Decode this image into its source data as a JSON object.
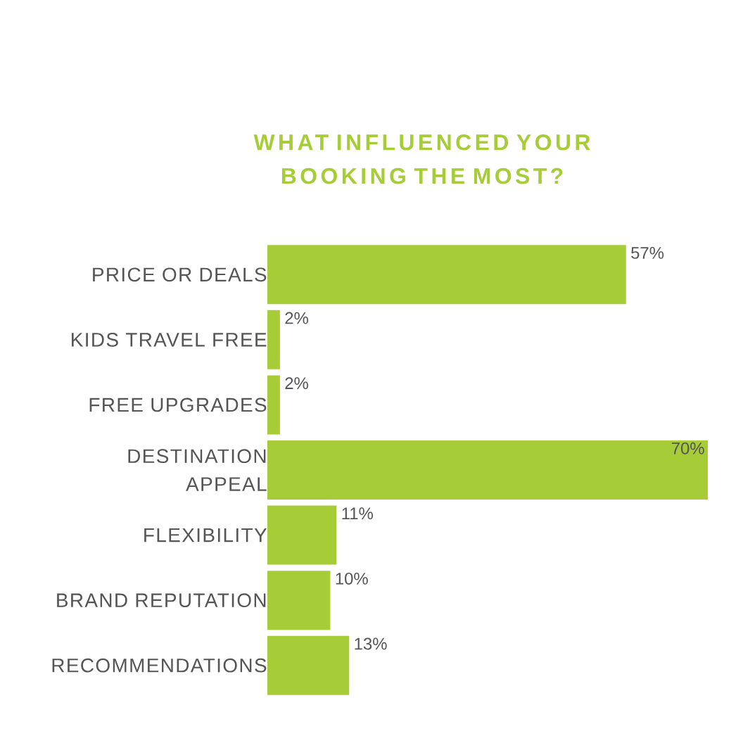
{
  "chart_data": {
    "type": "bar",
    "orientation": "horizontal",
    "title": "WHAT INFLUENCED YOUR BOOKING THE MOST?",
    "categories": [
      "PRICE OR DEALS",
      "KIDS TRAVEL FREE",
      "FREE UPGRADES",
      "DESTINATION APPEAL",
      "FLEXIBILITY",
      "BRAND REPUTATION",
      "RECOMMENDATIONS"
    ],
    "values": [
      57,
      2,
      2,
      70,
      11,
      10,
      13
    ],
    "value_labels": [
      "57%",
      "2%",
      "2%",
      "70%",
      "11%",
      "10%",
      "13%"
    ],
    "color": "#a6cc38"
  }
}
